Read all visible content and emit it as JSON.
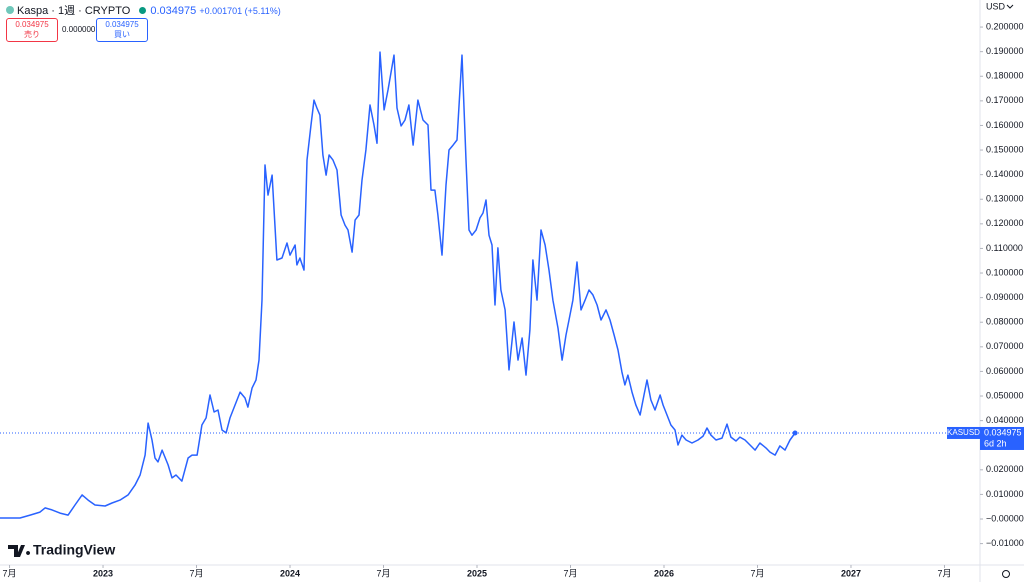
{
  "header": {
    "symbol": "Kaspa · 1週 · CRYPTO",
    "price": "0.034975",
    "change": "+0.001701 (+5.11%)",
    "sell": {
      "price": "0.034975",
      "label": "売り"
    },
    "spread": "0.000000",
    "buy": {
      "price": "0.034975",
      "label": "買い"
    }
  },
  "logo": "TradingView",
  "chart_data": {
    "type": "line",
    "currency": "USD",
    "countdown": "6d 2h",
    "series": [
      {
        "name": "KASUSD",
        "color": "#2962ff",
        "x": [
          2022.449,
          2022.556,
          2022.61,
          2022.663,
          2022.69,
          2022.727,
          2022.77,
          2022.813,
          2022.85,
          2022.888,
          2022.92,
          2022.957,
          2023.011,
          2023.048,
          2023.091,
          2023.134,
          2023.171,
          2023.198,
          2023.225,
          2023.241,
          2023.262,
          2023.278,
          2023.294,
          2023.316,
          2023.348,
          2023.369,
          2023.39,
          2023.422,
          2023.455,
          2023.476,
          2023.503,
          2023.529,
          2023.551,
          2023.572,
          2023.594,
          2023.615,
          2023.636,
          2023.658,
          2023.679,
          2023.706,
          2023.733,
          2023.759,
          2023.775,
          2023.797,
          2023.818,
          2023.834,
          2023.85,
          2023.866,
          2023.882,
          2023.904,
          2023.93,
          2023.957,
          2023.984,
          2024.0,
          2024.027,
          2024.037,
          2024.053,
          2024.075,
          2024.091,
          2024.112,
          2024.128,
          2024.144,
          2024.16,
          2024.176,
          2024.193,
          2024.209,
          2024.23,
          2024.251,
          2024.273,
          2024.294,
          2024.31,
          2024.332,
          2024.348,
          2024.369,
          2024.385,
          2024.406,
          2024.428,
          2024.449,
          2024.465,
          2024.481,
          2024.503,
          2024.524,
          2024.556,
          2024.572,
          2024.594,
          2024.615,
          2024.636,
          2024.658,
          2024.684,
          2024.711,
          2024.738,
          2024.754,
          2024.775,
          2024.791,
          2024.813,
          2024.834,
          2024.85,
          2024.872,
          2024.893,
          2024.92,
          2024.941,
          2024.957,
          2024.973,
          2024.995,
          2025.016,
          2025.032,
          2025.048,
          2025.064,
          2025.08,
          2025.096,
          2025.112,
          2025.128,
          2025.15,
          2025.171,
          2025.198,
          2025.219,
          2025.241,
          2025.262,
          2025.283,
          2025.299,
          2025.321,
          2025.342,
          2025.364,
          2025.385,
          2025.406,
          2025.433,
          2025.455,
          2025.476,
          2025.492,
          2025.513,
          2025.535,
          2025.556,
          2025.578,
          2025.599,
          2025.62,
          2025.642,
          2025.663,
          2025.69,
          2025.711,
          2025.733,
          2025.754,
          2025.775,
          2025.791,
          2025.807,
          2025.829,
          2025.85,
          2025.872,
          2025.893,
          2025.909,
          2025.93,
          2025.952,
          2025.979,
          2025.995,
          2026.016,
          2026.037,
          2026.059,
          2026.075,
          2026.096,
          2026.118,
          2026.15,
          2026.182,
          2026.209,
          2026.23,
          2026.251,
          2026.278,
          2026.31,
          2026.337,
          2026.358,
          2026.385,
          2026.406,
          2026.433,
          2026.46,
          2026.487,
          2026.513,
          2026.545,
          2026.567,
          2026.594,
          2026.62,
          2026.647,
          2026.674,
          2026.701
        ],
        "values": [
          0.0004,
          0.0004,
          0.0016,
          0.0028,
          0.0045,
          0.0037,
          0.0024,
          0.0016,
          0.0057,
          0.0098,
          0.0077,
          0.0057,
          0.0053,
          0.0065,
          0.0077,
          0.0098,
          0.0138,
          0.0179,
          0.026,
          0.039,
          0.0321,
          0.0248,
          0.0232,
          0.028,
          0.022,
          0.0167,
          0.0179,
          0.0154,
          0.0248,
          0.026,
          0.026,
          0.0382,
          0.0411,
          0.0504,
          0.0435,
          0.0443,
          0.0362,
          0.035,
          0.0411,
          0.0463,
          0.0516,
          0.0492,
          0.0455,
          0.0533,
          0.0565,
          0.0646,
          0.089,
          0.1439,
          0.1317,
          0.1398,
          0.1053,
          0.1061,
          0.1122,
          0.1073,
          0.1114,
          0.1033,
          0.1061,
          0.1012,
          0.1459,
          0.1602,
          0.1703,
          0.1671,
          0.1642,
          0.148,
          0.1398,
          0.148,
          0.1459,
          0.1419,
          0.1236,
          0.1195,
          0.1175,
          0.1085,
          0.1215,
          0.1236,
          0.1378,
          0.15,
          0.1683,
          0.1602,
          0.1528,
          0.1898,
          0.1663,
          0.1744,
          0.1886,
          0.1671,
          0.1598,
          0.1622,
          0.1683,
          0.152,
          0.1703,
          0.1622,
          0.1602,
          0.1337,
          0.1337,
          0.1236,
          0.1073,
          0.1358,
          0.15,
          0.152,
          0.1541,
          0.1886,
          0.1459,
          0.1175,
          0.1154,
          0.1175,
          0.1224,
          0.1244,
          0.1297,
          0.1154,
          0.1114,
          0.087,
          0.1102,
          0.0931,
          0.085,
          0.0606,
          0.0801,
          0.0646,
          0.0736,
          0.0585,
          0.0768,
          0.1053,
          0.089,
          0.1175,
          0.1114,
          0.1012,
          0.089,
          0.0776,
          0.0646,
          0.0748,
          0.0809,
          0.089,
          0.1045,
          0.085,
          0.089,
          0.0931,
          0.0911,
          0.087,
          0.0809,
          0.085,
          0.0809,
          0.0748,
          0.0687,
          0.0598,
          0.0545,
          0.0585,
          0.0516,
          0.0463,
          0.0423,
          0.0504,
          0.0565,
          0.0484,
          0.0443,
          0.0504,
          0.0463,
          0.0423,
          0.0382,
          0.0362,
          0.0301,
          0.0341,
          0.0321,
          0.0309,
          0.0321,
          0.0337,
          0.037,
          0.0341,
          0.0321,
          0.0329,
          0.0386,
          0.0333,
          0.0317,
          0.0333,
          0.0321,
          0.0301,
          0.028,
          0.0309,
          0.0289,
          0.0272,
          0.026,
          0.0297,
          0.028,
          0.0321,
          0.034975
        ]
      }
    ],
    "xlim": [
      2022.449,
      2027.69
    ],
    "xticks": [
      {
        "value": 2022.5,
        "label": "7月"
      },
      2023,
      {
        "value": 2023.5,
        "label": "7月"
      },
      2024,
      {
        "value": 2024.5,
        "label": "7月"
      },
      2025,
      {
        "value": 2025.5,
        "label": "7月"
      },
      2026,
      {
        "value": 2026.5,
        "label": "7月"
      },
      2027,
      {
        "value": 2027.5,
        "label": "7月"
      }
    ],
    "ylim": [
      -0.0187,
      0.211
    ],
    "yticks": [
      {
        "value": -0.01,
        "label": "−0.010000"
      },
      {
        "value": 0,
        "label": "−0.000000"
      },
      {
        "value": 0.01,
        "label": "0.010000"
      },
      {
        "value": 0.02,
        "label": "0.020000"
      },
      {
        "value": 0.03,
        "label": "0.030000"
      },
      {
        "value": 0.04,
        "label": "0.040000"
      },
      {
        "value": 0.05,
        "label": "0.050000"
      },
      {
        "value": 0.06,
        "label": "0.060000"
      },
      {
        "value": 0.07,
        "label": "0.070000"
      },
      {
        "value": 0.08,
        "label": "0.080000"
      },
      {
        "value": 0.09,
        "label": "0.090000"
      },
      {
        "value": 0.1,
        "label": "0.100000"
      },
      {
        "value": 0.11,
        "label": "0.110000"
      },
      {
        "value": 0.12,
        "label": "0.120000"
      },
      {
        "value": 0.13,
        "label": "0.130000"
      },
      {
        "value": 0.14,
        "label": "0.140000"
      },
      {
        "value": 0.15,
        "label": "0.150000"
      },
      {
        "value": 0.16,
        "label": "0.160000"
      },
      {
        "value": 0.17,
        "label": "0.170000"
      },
      {
        "value": 0.18,
        "label": "0.180000"
      },
      {
        "value": 0.19,
        "label": "0.190000"
      },
      {
        "value": 0.2,
        "label": "0.200000"
      }
    ]
  }
}
